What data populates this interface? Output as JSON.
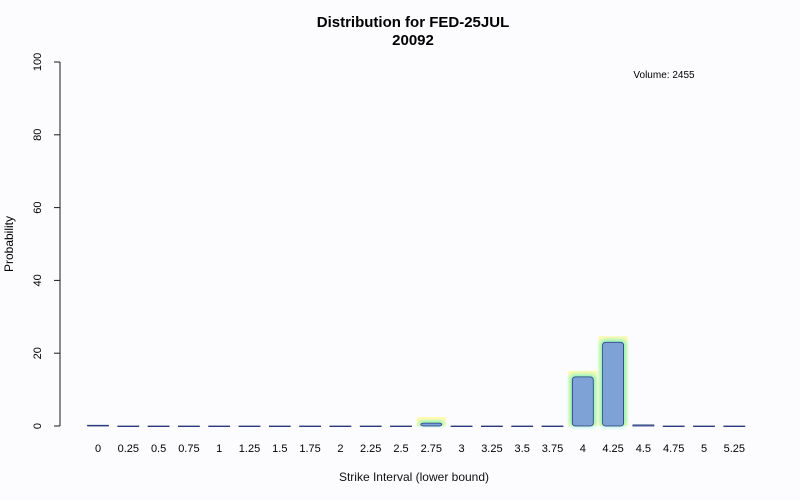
{
  "chart_data": {
    "type": "bar",
    "title_line1": "Distribution for FED-25JUL",
    "title_line2": "20092",
    "xlabel": "Strike Interval (lower bound)",
    "ylabel": "Probability",
    "ylim": [
      0,
      100
    ],
    "y_ticks": [
      "0",
      "20",
      "40",
      "60",
      "80",
      "100"
    ],
    "annotation": "Volume: 2455",
    "categories": [
      "0",
      "0.25",
      "0.5",
      "0.75",
      "1",
      "1.25",
      "1.5",
      "1.75",
      "2",
      "2.25",
      "2.5",
      "2.75",
      "3",
      "3.25",
      "3.5",
      "3.75",
      "4",
      "4.25",
      "4.5",
      "4.75",
      "5",
      "5.25"
    ],
    "values": [
      0.2,
      0,
      0,
      0,
      0,
      0,
      0,
      0,
      0,
      0,
      0,
      0.8,
      0,
      0,
      0,
      0,
      13.5,
      23,
      0.3,
      0,
      0,
      0
    ],
    "grid": false,
    "colors": {
      "bar_fill": "#7ea1d6",
      "bar_stroke": "#2a3a7a",
      "glow": "#5ff0c8",
      "halo": "#fff9a8",
      "axis": "#1a1a1a"
    }
  }
}
